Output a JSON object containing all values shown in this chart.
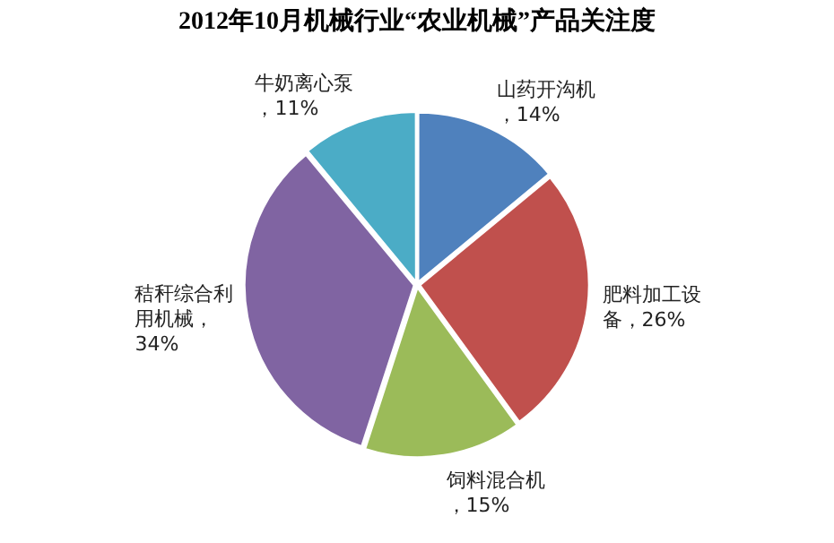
{
  "chart_data": {
    "type": "pie",
    "title": "2012年10月机械行业“农业机械”产品关注度",
    "categories": [
      "山药开沟机",
      "肥料加工设备",
      "饲料混合机",
      "秸秆综合利用机械",
      "牛奶离心泵"
    ],
    "values": [
      14,
      26,
      15,
      34,
      11
    ],
    "value_labels": [
      "，14%",
      "，26%",
      "，15%",
      "，34%",
      "，11%"
    ],
    "colors": [
      "#4f81bd",
      "#c0504d",
      "#9bbb59",
      "#8064a2",
      "#4bacc6"
    ]
  }
}
